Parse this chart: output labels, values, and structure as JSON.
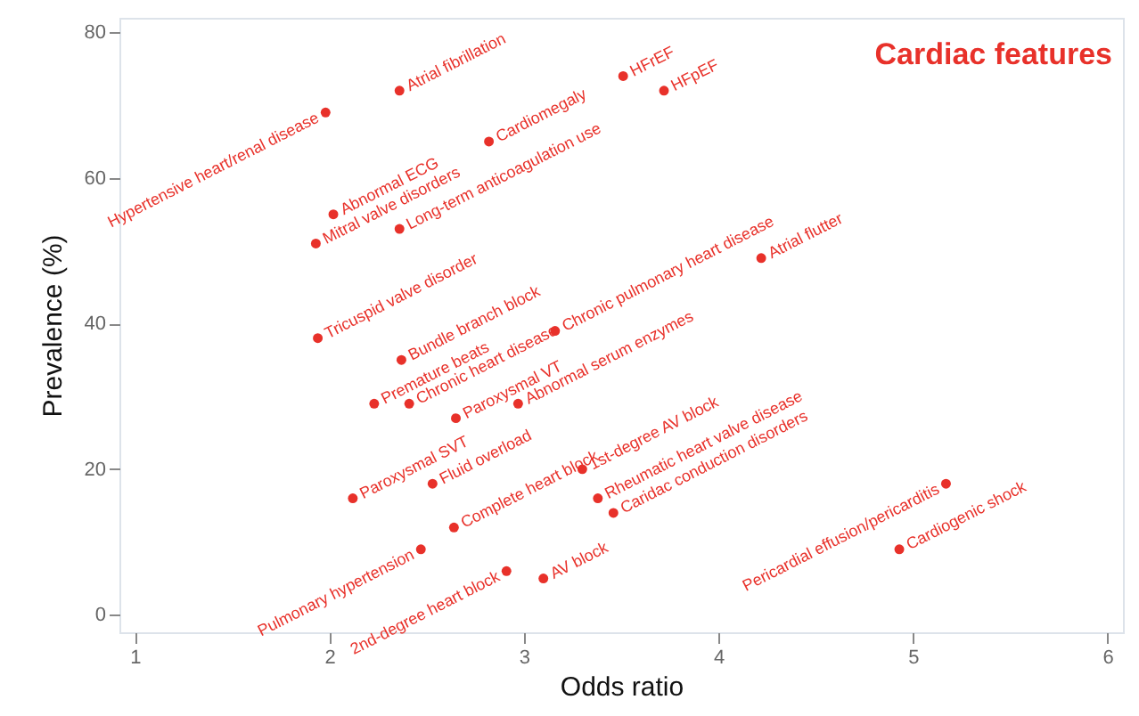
{
  "chart_data": {
    "type": "scatter",
    "title": "Cardiac features",
    "xlabel": "Odds ratio",
    "ylabel": "Prevalence (%)",
    "xlim": [
      0.92,
      6.08
    ],
    "ylim": [
      -2.4,
      82
    ],
    "xticks": [
      {
        "value": 1,
        "label": "1"
      },
      {
        "value": 2,
        "label": "2"
      },
      {
        "value": 3,
        "label": "3"
      },
      {
        "value": 4,
        "label": "4"
      },
      {
        "value": 5,
        "label": "5"
      },
      {
        "value": 6,
        "label": "6"
      }
    ],
    "yticks": [
      0,
      20,
      40,
      60,
      80
    ],
    "grid": false,
    "legend": false,
    "marker": "circle",
    "series": [
      {
        "name": "Hypertensive heart/renal disease",
        "color": "#e8312a",
        "x": [
          1.98
        ],
        "values": [
          69
        ]
      },
      {
        "name": "Atrial fibrillation",
        "color": "#e8312a",
        "x": [
          2.36
        ],
        "values": [
          72
        ]
      },
      {
        "name": "HFrEF",
        "color": "#e8312a",
        "x": [
          3.51
        ],
        "values": [
          74
        ]
      },
      {
        "name": "HFpEF",
        "color": "#e8312a",
        "x": [
          3.72
        ],
        "values": [
          72
        ]
      },
      {
        "name": "Cardiomegaly",
        "color": "#e8312a",
        "x": [
          2.82
        ],
        "values": [
          65
        ]
      },
      {
        "name": "Abnormal ECG",
        "color": "#e8312a",
        "x": [
          2.02
        ],
        "values": [
          55
        ]
      },
      {
        "name": "Mitral valve disorders",
        "color": "#e8312a",
        "x": [
          1.93
        ],
        "values": [
          51
        ]
      },
      {
        "name": "Long-term anticoagulation use",
        "color": "#e8312a",
        "x": [
          2.36
        ],
        "values": [
          53
        ]
      },
      {
        "name": "Tricuspid valve disorder",
        "color": "#e8312a",
        "x": [
          1.94
        ],
        "values": [
          38
        ]
      },
      {
        "name": "Atrial flutter",
        "color": "#e8312a",
        "x": [
          4.22
        ],
        "values": [
          49
        ]
      },
      {
        "name": "Chronic pulmonary heart disease",
        "color": "#e8312a",
        "x": [
          3.16
        ],
        "values": [
          39
        ]
      },
      {
        "name": "Bundle branch block",
        "color": "#e8312a",
        "x": [
          2.37
        ],
        "values": [
          35
        ]
      },
      {
        "name": "Premature beats",
        "color": "#e8312a",
        "x": [
          2.23
        ],
        "values": [
          29
        ]
      },
      {
        "name": "Chronic heart disease",
        "color": "#e8312a",
        "x": [
          2.41
        ],
        "values": [
          29
        ]
      },
      {
        "name": "Paroxysmal VT",
        "color": "#e8312a",
        "x": [
          2.65
        ],
        "values": [
          27
        ]
      },
      {
        "name": "Abnormal serum enzymes",
        "color": "#e8312a",
        "x": [
          2.97
        ],
        "values": [
          29
        ]
      },
      {
        "name": "Paroxysmal SVT",
        "color": "#e8312a",
        "x": [
          2.12
        ],
        "values": [
          16
        ]
      },
      {
        "name": "Fluid overload",
        "color": "#e8312a",
        "x": [
          2.53
        ],
        "values": [
          18
        ]
      },
      {
        "name": "Complete heart block",
        "color": "#e8312a",
        "x": [
          2.64
        ],
        "values": [
          12
        ]
      },
      {
        "name": "Pulmonary hypertension",
        "color": "#e8312a",
        "x": [
          2.47
        ],
        "values": [
          9
        ]
      },
      {
        "name": "2nd-degree heart block",
        "color": "#e8312a",
        "x": [
          2.91
        ],
        "values": [
          6
        ]
      },
      {
        "name": "AV block",
        "color": "#e8312a",
        "x": [
          3.1
        ],
        "values": [
          5
        ]
      },
      {
        "name": "1st-degree AV block",
        "color": "#e8312a",
        "x": [
          3.3
        ],
        "values": [
          20
        ]
      },
      {
        "name": "Rheumatic heart valve disease",
        "color": "#e8312a",
        "x": [
          3.38
        ],
        "values": [
          16
        ]
      },
      {
        "name": "Caridac conduction disorders",
        "color": "#e8312a",
        "x": [
          3.46
        ],
        "values": [
          14
        ]
      },
      {
        "name": "Pericardial effusion/pericarditis",
        "color": "#e8312a",
        "x": [
          5.17
        ],
        "values": [
          18
        ]
      },
      {
        "name": "Cardiogenic shock",
        "color": "#e8312a",
        "x": [
          4.93
        ],
        "values": [
          9
        ]
      }
    ]
  }
}
